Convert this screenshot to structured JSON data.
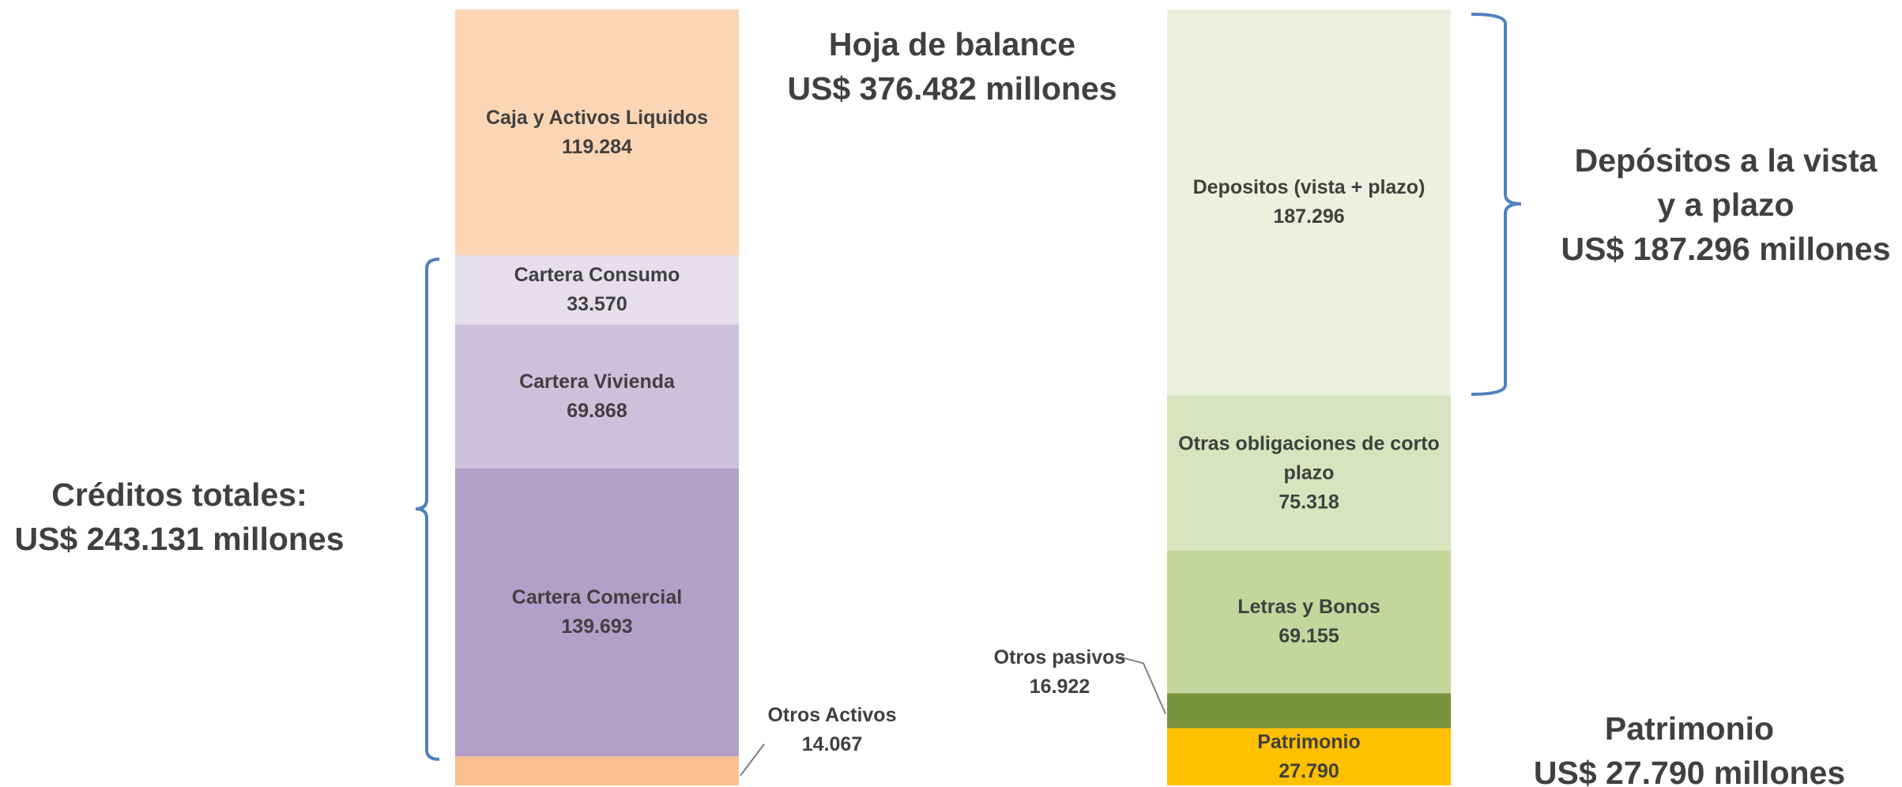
{
  "chart_data": {
    "type": "stacked_bar",
    "title": "Hoja de balance",
    "subtitle": "US$ 376.482 millones",
    "stacks": [
      {
        "segments": [
          {
            "name": "Caja y Activos Liquidos",
            "value": 119284,
            "value_label": "119.284",
            "color": "#FCD5B5"
          },
          {
            "name": "Cartera Consumo",
            "value": 33570,
            "value_label": "33.570",
            "color": "#E5DFEC"
          },
          {
            "name": "Cartera Vivienda",
            "value": 69868,
            "value_label": "69.868",
            "color": "#CCC1DA"
          },
          {
            "name": "Cartera Comercial",
            "value": 139693,
            "value_label": "139.693",
            "color": "#B1A0C7"
          },
          {
            "name": "Otros Activos",
            "value": 14067,
            "value_label": "14.067",
            "color": "#FAC090"
          }
        ]
      },
      {
        "segments": [
          {
            "name": "Depositos (vista + plazo)",
            "value": 187296,
            "value_label": "187.296",
            "color": "#EBF1DE"
          },
          {
            "name": "Otras obligaciones de corto plazo",
            "value": 75318,
            "value_label": "75.318",
            "color": "#D7E4BD"
          },
          {
            "name": "Letras y Bonos",
            "value": 69155,
            "value_label": "69.155",
            "color": "#C3D69B"
          },
          {
            "name": "Otros pasivos",
            "value": 16922,
            "value_label": "16.922",
            "color": "#77933C"
          },
          {
            "name": "Patrimonio",
            "value": 27790,
            "value_label": "27.790",
            "color": "#FFC000"
          }
        ]
      }
    ],
    "annotations": [
      {
        "lines": [
          "Créditos totales:",
          "US$ 243.131 millones"
        ]
      },
      {
        "lines": [
          "Depósitos a la vista",
          "y a plazo",
          "US$ 187.296 millones"
        ]
      },
      {
        "lines": [
          "Patrimonio",
          "US$ 27.790 millones"
        ]
      }
    ]
  }
}
